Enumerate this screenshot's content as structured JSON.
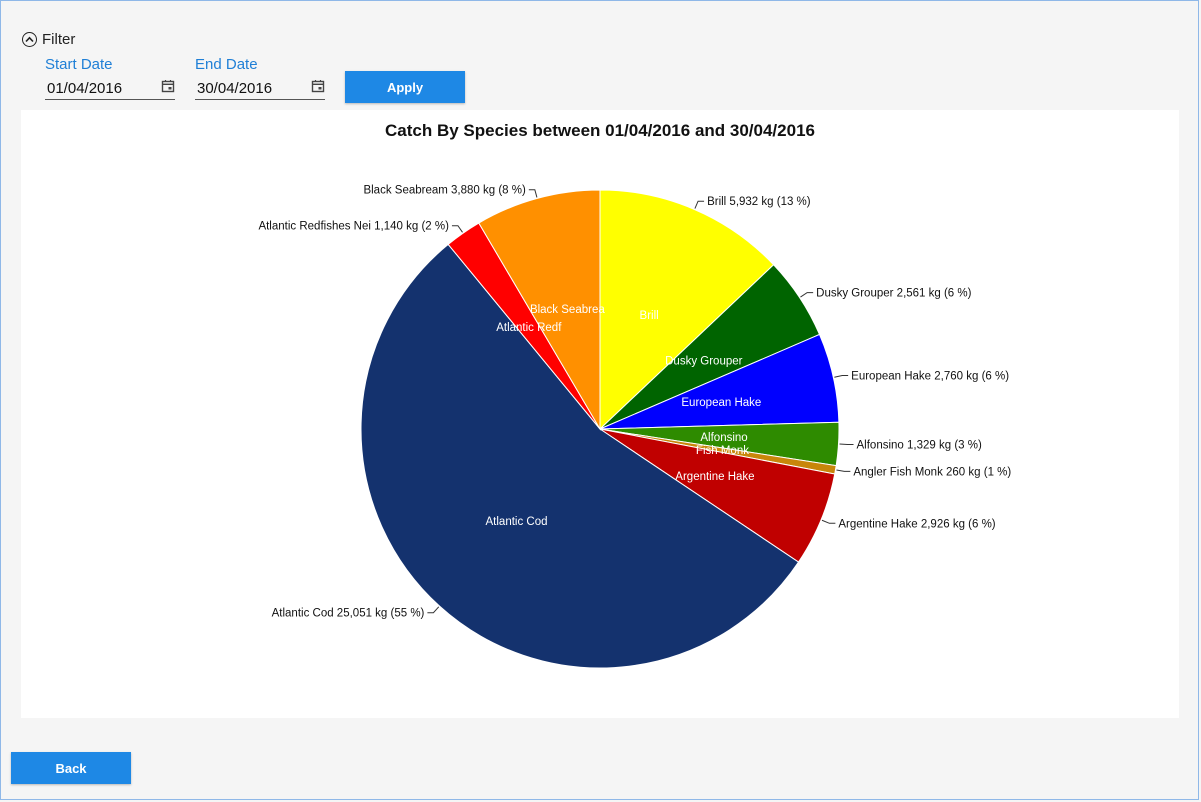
{
  "filter": {
    "label": "Filter"
  },
  "start_date": {
    "label": "Start Date",
    "value": "01/04/2016"
  },
  "end_date": {
    "label": "End Date",
    "value": "30/04/2016"
  },
  "buttons": {
    "apply": "Apply",
    "back": "Back"
  },
  "icons": {
    "filter_toggle": "chevron-up-circle-icon",
    "calendar": "calendar-icon"
  },
  "colors": {
    "accent": "#1e88e5",
    "label_blue": "#1f7fd6"
  },
  "chart_data": {
    "type": "pie",
    "title": "Catch By Species between 01/04/2016 and 30/04/2016",
    "unit": "kg",
    "slices": [
      {
        "name": "Brill",
        "value": 5932,
        "percent_label": "13 %",
        "color": "#ffff00",
        "inner_label": "Brill",
        "outer_label": "Brill 5,932 kg (13 %)"
      },
      {
        "name": "Dusky Grouper",
        "value": 2561,
        "percent_label": "6 %",
        "color": "#006400",
        "inner_label": "Dusky Grouper",
        "outer_label": "Dusky Grouper 2,561 kg (6 %)"
      },
      {
        "name": "European Hake",
        "value": 2760,
        "percent_label": "6 %",
        "color": "#0000ff",
        "inner_label": "European Hake",
        "outer_label": "European Hake 2,760 kg (6 %)"
      },
      {
        "name": "Alfonsino",
        "value": 1329,
        "percent_label": "3 %",
        "color": "#2e8b00",
        "inner_label": "Alfonsino",
        "outer_label": "Alfonsino 1,329 kg (3 %)"
      },
      {
        "name": "Angler Fish Monk",
        "value": 260,
        "percent_label": "1 %",
        "color": "#c8860a",
        "inner_label": "Fish Monk",
        "outer_label": "Angler Fish Monk 260 kg (1 %)"
      },
      {
        "name": "Argentine Hake",
        "value": 2926,
        "percent_label": "6 %",
        "color": "#c00000",
        "inner_label": "Argentine Hake",
        "outer_label": "Argentine Hake 2,926 kg (6 %)"
      },
      {
        "name": "Atlantic Cod",
        "value": 25051,
        "percent_label": "55 %",
        "color": "#14326e",
        "inner_label": "Atlantic Cod",
        "outer_label": "Atlantic Cod 25,051 kg (55 %)"
      },
      {
        "name": "Atlantic Redfishes Nei",
        "value": 1140,
        "percent_label": "2 %",
        "color": "#ff0000",
        "inner_label": "Atlantic Redf",
        "outer_label": "Atlantic Redfishes Nei 1,140 kg (2 %)"
      },
      {
        "name": "Black Seabream",
        "value": 3880,
        "percent_label": "8 %",
        "color": "#ff9000",
        "inner_label": "Black Seabrea",
        "outer_label": "Black Seabream 3,880 kg (8 %)"
      }
    ]
  }
}
